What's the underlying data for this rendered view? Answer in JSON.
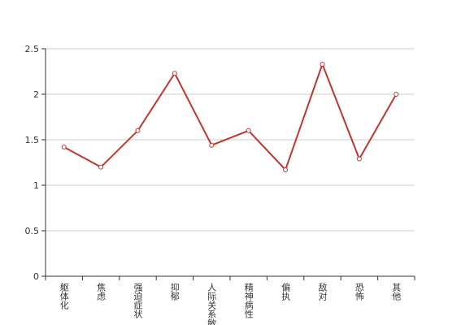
{
  "chart_data": {
    "type": "line",
    "categories": [
      "躯体化",
      "焦虑",
      "强迫症状",
      "抑郁",
      "人际关系敏感",
      "精神病性",
      "偏执",
      "敌对",
      "恐怖",
      "其他"
    ],
    "series": [
      {
        "color": "#c23531",
        "values": [
          1.42,
          1.2,
          1.6,
          2.23,
          1.44,
          1.6,
          1.17,
          2.33,
          1.29,
          2.0
        ]
      }
    ],
    "ylim": [
      0,
      2.5
    ],
    "yticks": [
      0,
      0.5,
      1,
      1.5,
      2,
      2.5
    ],
    "grid": true
  }
}
